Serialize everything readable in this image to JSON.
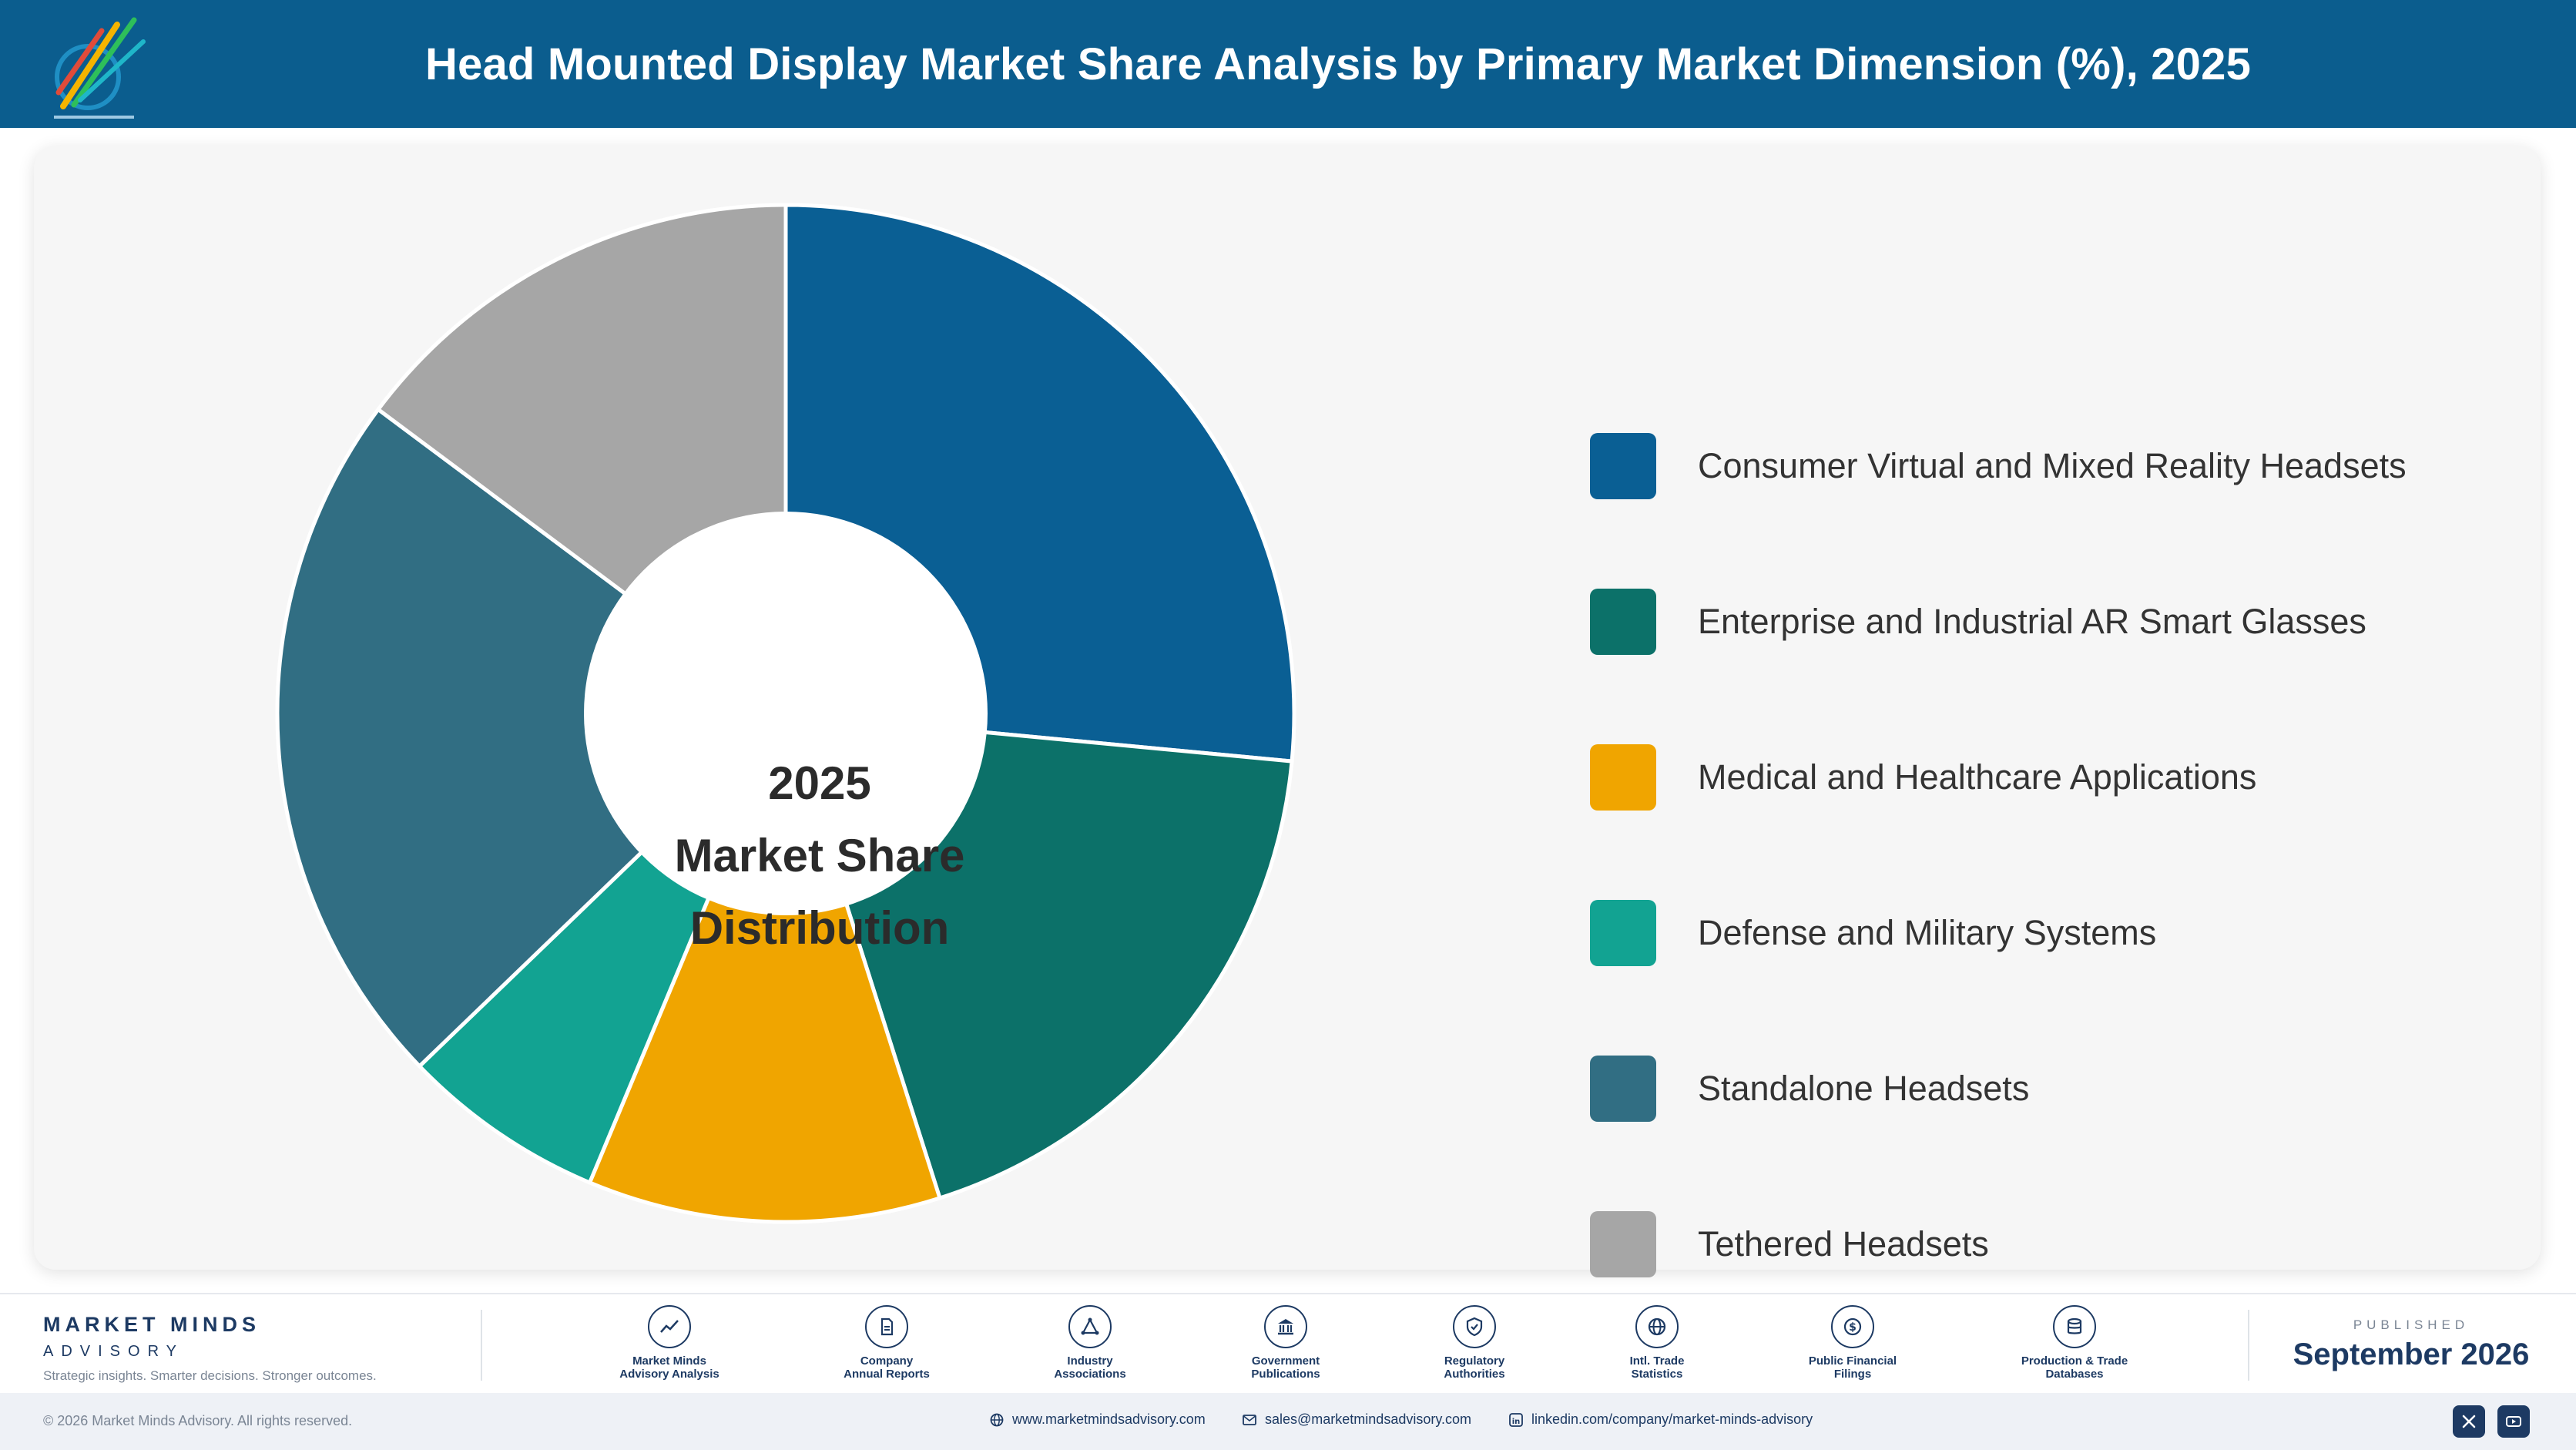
{
  "header": {
    "title": "Head Mounted Display Market Share Analysis by Primary Market Dimension (%), 2025",
    "logo_icon": "market-minds-logo-icon"
  },
  "chart": {
    "center_line1": "2025",
    "center_line2": "Market Share",
    "center_line3": "Distribution"
  },
  "chart_data": {
    "type": "pie",
    "variant": "donut",
    "title": "Head Mounted Display Market Share Analysis by Primary Market Dimension (%), 2025",
    "categories": [
      "Consumer Virtual and Mixed Reality Headsets",
      "Enterprise and Industrial AR Smart Glasses",
      "Medical and Healthcare Applications",
      "Defense and Military Systems",
      "Standalone Headsets",
      "Tethered Headsets"
    ],
    "values": [
      26.5,
      18.6,
      11.2,
      6.5,
      22.4,
      14.8
    ],
    "colors": [
      "#0a5f94",
      "#0c7169",
      "#f0a500",
      "#12a392",
      "#316e83",
      "#a6a6a6"
    ],
    "legend_position": "right"
  },
  "legend": {
    "items": [
      {
        "label": "Consumer Virtual and Mixed Reality Headsets"
      },
      {
        "label": "Enterprise and Industrial AR Smart Glasses"
      },
      {
        "label": "Medical and Healthcare Applications"
      },
      {
        "label": "Defense and Military Systems"
      },
      {
        "label": "Standalone Headsets"
      },
      {
        "label": "Tethered Headsets"
      }
    ]
  },
  "footer": {
    "brand": {
      "name": "MARKET MINDS",
      "sub": "ADVISORY",
      "tagline": "Strategic insights. Smarter decisions. Stronger outcomes."
    },
    "sources": [
      {
        "line1": "Market Minds",
        "line2": "Advisory Analysis",
        "icon": "trend-chart-icon"
      },
      {
        "line1": "Company",
        "line2": "Annual Reports",
        "icon": "document-icon"
      },
      {
        "line1": "Industry",
        "line2": "Associations",
        "icon": "network-icon"
      },
      {
        "line1": "Government",
        "line2": "Publications",
        "icon": "government-building-icon"
      },
      {
        "line1": "Regulatory",
        "line2": "Authorities",
        "icon": "shield-check-icon"
      },
      {
        "line1": "Intl. Trade",
        "line2": "Statistics",
        "icon": "globe-icon"
      },
      {
        "line1": "Public Financial",
        "line2": "Filings",
        "icon": "dollar-coin-icon"
      },
      {
        "line1": "Production & Trade",
        "line2": "Databases",
        "icon": "database-icon"
      }
    ],
    "published_label": "PUBLISHED",
    "published_date": "September 2026",
    "copyright": "© 2026 Market Minds Advisory. All rights reserved.",
    "website": "www.marketmindsadvisory.com",
    "email": "sales@marketmindsadvisory.com",
    "linkedin": "linkedin.com/company/market-minds-advisory"
  }
}
